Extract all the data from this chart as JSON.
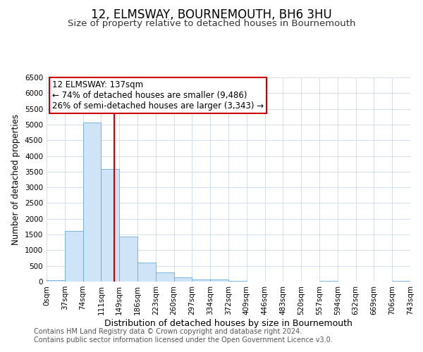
{
  "title": "12, ELMSWAY, BOURNEMOUTH, BH6 3HU",
  "subtitle": "Size of property relative to detached houses in Bournemouth",
  "xlabel": "Distribution of detached houses by size in Bournemouth",
  "ylabel": "Number of detached properties",
  "bar_left_edges": [
    0,
    37,
    74,
    111,
    148,
    185,
    222,
    259,
    296,
    333,
    370,
    407,
    444,
    481,
    518,
    555,
    592,
    629,
    666,
    703
  ],
  "bar_heights": [
    50,
    1620,
    5060,
    3580,
    1430,
    610,
    290,
    140,
    60,
    60,
    30,
    0,
    0,
    0,
    0,
    30,
    0,
    0,
    0,
    30
  ],
  "bin_width": 37,
  "bar_facecolor": "#d0e4f7",
  "bar_edgecolor": "#6aaad4",
  "vline_x": 137,
  "vline_color": "#cc0000",
  "annotation_line1": "12 ELMSWAY: 137sqm",
  "annotation_line2": "← 74% of detached houses are smaller (9,486)",
  "annotation_line3": "26% of semi-detached houses are larger (3,343) →",
  "annotation_box_edgecolor": "#cc0000",
  "annotation_box_facecolor": "white",
  "ylim": [
    0,
    6500
  ],
  "yticks": [
    0,
    500,
    1000,
    1500,
    2000,
    2500,
    3000,
    3500,
    4000,
    4500,
    5000,
    5500,
    6000,
    6500
  ],
  "xtick_labels": [
    "0sqm",
    "37sqm",
    "74sqm",
    "111sqm",
    "149sqm",
    "186sqm",
    "223sqm",
    "260sqm",
    "297sqm",
    "334sqm",
    "372sqm",
    "409sqm",
    "446sqm",
    "483sqm",
    "520sqm",
    "557sqm",
    "594sqm",
    "632sqm",
    "669sqm",
    "706sqm",
    "743sqm"
  ],
  "grid_color": "#d0dff0",
  "footer_line1": "Contains HM Land Registry data © Crown copyright and database right 2024.",
  "footer_line2": "Contains public sector information licensed under the Open Government Licence v3.0.",
  "title_fontsize": 12,
  "subtitle_fontsize": 9.5,
  "xlabel_fontsize": 9,
  "ylabel_fontsize": 8.5,
  "tick_fontsize": 7.5,
  "annotation_fontsize": 8.5,
  "footer_fontsize": 7
}
